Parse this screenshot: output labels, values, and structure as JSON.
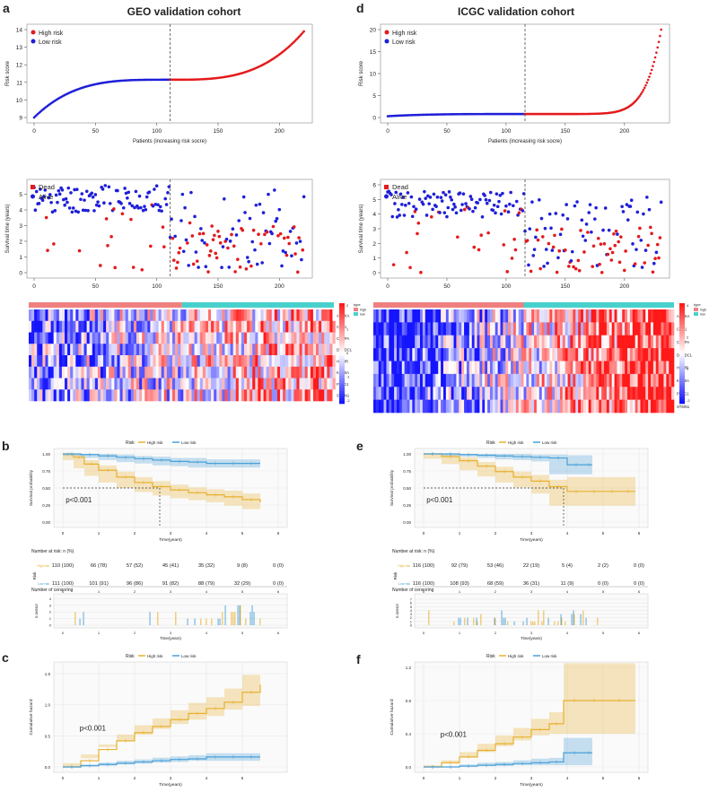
{
  "panels": {
    "a": {
      "letter": "a",
      "title": "GEO validation cohort",
      "score": {
        "ylabel": "Risk score",
        "xlabel": "Patients (increasing risk socre)",
        "yticks": [
          "9",
          "10",
          "11",
          "12",
          "13",
          "14"
        ],
        "xticks": [
          "0",
          "50",
          "100",
          "150",
          "200"
        ],
        "legend": [
          "High risk",
          "Low risk"
        ]
      },
      "surv": {
        "ylabel": "Survival time (years)",
        "yticks": [
          "0",
          "1",
          "2",
          "3",
          "4",
          "5"
        ],
        "xticks": [
          "0",
          "50",
          "100",
          "150",
          "200"
        ],
        "legend": [
          "Dead",
          "Alive"
        ]
      },
      "heat": {
        "genes": [
          "AURKA",
          "CDK1",
          "CENPA",
          "DEPDC1",
          "HMMR",
          "KIF20A",
          "PTTG1",
          "STMN1"
        ],
        "type_legend": [
          "type",
          "high",
          "low"
        ],
        "scale": [
          "2",
          "1",
          "0",
          "-1",
          "-2"
        ]
      }
    },
    "d": {
      "letter": "d",
      "title": "ICGC validation cohort",
      "score": {
        "ylabel": "Risk score",
        "xlabel": "Patients (increasing risk socre)",
        "yticks": [
          "0",
          "5",
          "10",
          "15",
          "20"
        ],
        "xticks": [
          "0",
          "50",
          "100",
          "150",
          "200"
        ],
        "legend": [
          "High risk",
          "Low risk"
        ]
      },
      "surv": {
        "ylabel": "Survival time (years)",
        "yticks": [
          "0",
          "1",
          "2",
          "3",
          "4",
          "5",
          "6"
        ],
        "xticks": [
          "0",
          "50",
          "100",
          "150",
          "200"
        ],
        "legend": [
          "Dead",
          "Alive"
        ]
      },
      "heat": {
        "genes": [
          "AURKA",
          "CDK1",
          "CENPA",
          "DEPDC1",
          "HMMR",
          "KIF20A",
          "PTTG1",
          "STMN1"
        ],
        "type_legend": [
          "type",
          "high",
          "low"
        ],
        "scale": [
          "4",
          "2",
          "0",
          "-2"
        ]
      }
    },
    "b": {
      "letter": "b",
      "legend_title": "Risk",
      "legend": [
        "High risk",
        "Low risk"
      ],
      "ylabel": "Survival probability",
      "xlabel": "Time(years)",
      "yticks": [
        "0.00",
        "0.25",
        "0.50",
        "0.75",
        "1.00"
      ],
      "xticks": [
        "0",
        "1",
        "2",
        "3",
        "4",
        "5",
        "6"
      ],
      "pval": "p<0.001",
      "risk_title": "Number at risk: n (%)",
      "risk_ylabel": "Risk",
      "risk_rows": [
        "High risk",
        "Low risk"
      ],
      "risk_high": [
        "110 (100)",
        "66 (78)",
        "57 (52)",
        "45 (41)",
        "35 (32)",
        "9 (8)",
        "0 (0)"
      ],
      "risk_low": [
        "111 (100)",
        "101 (91)",
        "96 (86)",
        "91 (82)",
        "88 (79)",
        "32 (29)",
        "0 (0)"
      ],
      "cens_title": "Number of censoring",
      "cens_ylabel": "n.censor",
      "cens_yticks": [
        "0",
        "1",
        "2",
        "3",
        "4"
      ]
    },
    "e": {
      "letter": "e",
      "legend_title": "Risk",
      "legend": [
        "High risk",
        "Low risk"
      ],
      "ylabel": "Survival probability",
      "xlabel": "Time(years)",
      "yticks": [
        "0.00",
        "0.25",
        "0.50",
        "0.75",
        "1.00"
      ],
      "xticks": [
        "0",
        "1",
        "2",
        "3",
        "4",
        "5",
        "6"
      ],
      "pval": "p<0.001",
      "risk_title": "Number at risk: n (%)",
      "risk_ylabel": "Risk",
      "risk_rows": [
        "High risk",
        "Low risk"
      ],
      "risk_high": [
        "116 (100)",
        "92 (79)",
        "53 (46)",
        "22 (19)",
        "5 (4)",
        "2 (2)",
        "0 (0)"
      ],
      "risk_low": [
        "116 (100)",
        "108 (93)",
        "68 (59)",
        "36 (31)",
        "11 (9)",
        "0 (0)",
        "0 (0)"
      ],
      "cens_title": "Number of censoring",
      "cens_ylabel": "n.censor",
      "cens_yticks": [
        "0",
        "1",
        "2",
        "3",
        "4",
        "5",
        "6",
        "7"
      ]
    },
    "c": {
      "letter": "c",
      "legend_title": "Risk",
      "legend": [
        "High risk",
        "Low risk"
      ],
      "ylabel": "Cumulative hazard",
      "xlabel": "Time(years)",
      "yticks": [
        "0.0",
        "0.5",
        "1.0",
        "1.5"
      ],
      "xticks": [
        "0",
        "1",
        "2",
        "3",
        "4",
        "5"
      ],
      "pval": "p<0.001"
    },
    "f": {
      "letter": "f",
      "legend_title": "Risk",
      "legend": [
        "High risk",
        "Low risk"
      ],
      "ylabel": "Cumulative hazard",
      "xlabel": "Time(years)",
      "yticks": [
        "0.0",
        "0.4",
        "0.8",
        "1.2"
      ],
      "xticks": [
        "0",
        "1",
        "2",
        "3",
        "4",
        "5",
        "6"
      ],
      "pval": "p<0.001"
    }
  },
  "colors": {
    "high": "#e41a1c",
    "low": "#1f1fd8",
    "km_high": "#e8b030",
    "km_low": "#4aa0d8",
    "heat_high": "#f08080",
    "heat_low": "#48d1cc",
    "hm_pos": "#e31a1c",
    "hm_neg": "#1010d0"
  },
  "chart_data": [
    {
      "type": "scatter",
      "panel": "a-risk-score",
      "title": "GEO validation cohort",
      "xlabel": "Patients (increasing risk socre)",
      "ylabel": "Risk score",
      "xlim": [
        0,
        221
      ],
      "ylim": [
        9,
        14
      ],
      "cutoff": 111,
      "series": [
        {
          "name": "Low risk",
          "n": 111,
          "y_start": 9.0,
          "y_end": 11.15
        },
        {
          "name": "High risk",
          "n": 110,
          "y_start": 11.15,
          "y_end": 13.9
        }
      ]
    },
    {
      "type": "scatter",
      "panel": "d-risk-score",
      "title": "ICGC validation cohort",
      "xlabel": "Patients (increasing risk socre)",
      "ylabel": "Risk score",
      "xlim": [
        0,
        232
      ],
      "ylim": [
        0,
        20
      ],
      "cutoff": 116,
      "series": [
        {
          "name": "Low risk",
          "n": 116,
          "y_start": 0.3,
          "y_end": 0.8
        },
        {
          "name": "High risk",
          "n": 116,
          "y_start": 0.8,
          "y_end": 20.0
        }
      ]
    },
    {
      "type": "scatter",
      "panel": "a-survival-time",
      "ylabel": "Survival time (years)",
      "xlim": [
        0,
        221
      ],
      "ylim": [
        0,
        5.6
      ],
      "series": [
        {
          "name": "Dead"
        },
        {
          "name": "Alive"
        }
      ]
    },
    {
      "type": "scatter",
      "panel": "d-survival-time",
      "ylabel": "Survival time (years)",
      "xlim": [
        0,
        232
      ],
      "ylim": [
        0,
        6.0
      ],
      "series": [
        {
          "name": "Dead"
        },
        {
          "name": "Alive"
        }
      ]
    },
    {
      "type": "line",
      "panel": "b",
      "xlabel": "Time(years)",
      "ylabel": "Survival probability",
      "xlim": [
        0,
        6
      ],
      "ylim": [
        0,
        1
      ],
      "series": [
        {
          "name": "High risk",
          "x": [
            0,
            0.3,
            0.6,
            1,
            1.5,
            2,
            2.5,
            3,
            3.5,
            4,
            4.5,
            5,
            5.5
          ],
          "y": [
            1,
            0.95,
            0.85,
            0.76,
            0.66,
            0.58,
            0.52,
            0.47,
            0.43,
            0.4,
            0.37,
            0.33,
            0.29
          ],
          "lower": [
            1,
            0.91,
            0.79,
            0.68,
            0.58,
            0.5,
            0.44,
            0.39,
            0.35,
            0.32,
            0.29,
            0.24,
            0.19
          ],
          "upper": [
            1,
            0.99,
            0.91,
            0.83,
            0.74,
            0.66,
            0.6,
            0.55,
            0.51,
            0.48,
            0.46,
            0.42,
            0.4
          ]
        },
        {
          "name": "Low risk",
          "x": [
            0,
            0.5,
            1,
            1.5,
            2,
            2.5,
            3,
            3.5,
            4,
            4.5,
            5,
            5.5
          ],
          "y": [
            1,
            0.99,
            0.97,
            0.95,
            0.93,
            0.91,
            0.89,
            0.88,
            0.86,
            0.86,
            0.86,
            0.86
          ],
          "lower": [
            1,
            0.97,
            0.94,
            0.91,
            0.88,
            0.86,
            0.83,
            0.82,
            0.8,
            0.8,
            0.8,
            0.8
          ],
          "upper": [
            1,
            1,
            1,
            0.99,
            0.97,
            0.96,
            0.94,
            0.94,
            0.92,
            0.92,
            0.92,
            0.92
          ]
        }
      ],
      "median_high": 2.7
    },
    {
      "type": "line",
      "panel": "e",
      "xlabel": "Time(years)",
      "ylabel": "Survival probability",
      "xlim": [
        0,
        6
      ],
      "ylim": [
        0,
        1
      ],
      "series": [
        {
          "name": "High risk",
          "x": [
            0,
            0.5,
            1,
            1.5,
            2,
            2.5,
            3,
            3.5,
            4,
            4.5,
            5,
            5.5,
            5.9
          ],
          "y": [
            1,
            0.96,
            0.9,
            0.82,
            0.74,
            0.66,
            0.6,
            0.52,
            0.45,
            0.45,
            0.45,
            0.45,
            0.45
          ],
          "lower": [
            1,
            0.93,
            0.85,
            0.76,
            0.67,
            0.58,
            0.51,
            0.42,
            0.24,
            0.24,
            0.24,
            0.24,
            0.24
          ],
          "upper": [
            1,
            0.99,
            0.95,
            0.88,
            0.81,
            0.74,
            0.69,
            0.62,
            0.66,
            0.66,
            0.66,
            0.66,
            0.66
          ]
        },
        {
          "name": "Low risk",
          "x": [
            0,
            0.5,
            1,
            1.5,
            2,
            2.5,
            3,
            3.5,
            4,
            4.5,
            4.7
          ],
          "y": [
            1,
            1,
            0.99,
            0.98,
            0.97,
            0.96,
            0.95,
            0.94,
            0.84,
            0.84,
            0.84
          ],
          "lower": [
            1,
            1,
            0.97,
            0.96,
            0.94,
            0.92,
            0.91,
            0.89,
            0.7,
            0.7,
            0.7
          ],
          "upper": [
            1,
            1,
            1,
            1,
            1,
            1,
            0.99,
            0.99,
            0.98,
            0.98,
            0.98
          ]
        }
      ],
      "median_high": 3.9
    },
    {
      "type": "bar",
      "panel": "b-censoring",
      "ylabel": "n.censor",
      "xlabel": "Time(years)",
      "ylim": [
        0,
        4
      ]
    },
    {
      "type": "bar",
      "panel": "e-censoring",
      "ylabel": "n.censor",
      "xlabel": "Time(years)",
      "ylim": [
        0,
        7
      ]
    },
    {
      "type": "line",
      "panel": "c",
      "xlabel": "Time(years)",
      "ylabel": "Cumulative hazard",
      "xlim": [
        0,
        5.6
      ],
      "ylim": [
        0,
        1.6
      ],
      "series": [
        {
          "name": "High risk",
          "x": [
            0,
            0.5,
            1,
            1.5,
            2,
            2.5,
            3,
            3.5,
            4,
            4.5,
            5,
            5.5
          ],
          "y": [
            0,
            0.1,
            0.28,
            0.42,
            0.55,
            0.65,
            0.76,
            0.86,
            0.94,
            1.04,
            1.2,
            1.32
          ],
          "lower": [
            0,
            0.06,
            0.2,
            0.32,
            0.43,
            0.52,
            0.61,
            0.69,
            0.76,
            0.82,
            0.92,
            0.98
          ],
          "upper": [
            0,
            0.14,
            0.36,
            0.52,
            0.67,
            0.78,
            0.91,
            1.03,
            1.12,
            1.26,
            1.48,
            1.66
          ]
        },
        {
          "name": "Low risk",
          "x": [
            0,
            0.5,
            1,
            1.5,
            2,
            2.5,
            3,
            3.5,
            4,
            4.5,
            5,
            5.5
          ],
          "y": [
            0,
            0.02,
            0.04,
            0.06,
            0.08,
            0.1,
            0.12,
            0.13,
            0.16,
            0.16,
            0.16,
            0.16
          ],
          "lower": [
            0,
            0,
            0.01,
            0.02,
            0.04,
            0.05,
            0.07,
            0.08,
            0.1,
            0.1,
            0.1,
            0.1
          ],
          "upper": [
            0,
            0.04,
            0.07,
            0.1,
            0.12,
            0.15,
            0.17,
            0.19,
            0.22,
            0.22,
            0.22,
            0.22
          ]
        }
      ]
    },
    {
      "type": "line",
      "panel": "f",
      "xlabel": "Time(years)",
      "ylabel": "Cumulative hazard",
      "xlim": [
        0,
        6
      ],
      "ylim": [
        0,
        1.2
      ],
      "series": [
        {
          "name": "High risk",
          "x": [
            0,
            0.5,
            1,
            1.5,
            2,
            2.5,
            3,
            3.5,
            3.9,
            4.5,
            5,
            5.9
          ],
          "y": [
            0,
            0.05,
            0.12,
            0.2,
            0.28,
            0.36,
            0.45,
            0.52,
            0.8,
            0.8,
            0.8,
            0.8
          ],
          "lower": [
            0,
            0.02,
            0.06,
            0.12,
            0.18,
            0.25,
            0.32,
            0.38,
            0.4,
            0.4,
            0.4,
            0.4
          ],
          "upper": [
            0,
            0.08,
            0.18,
            0.28,
            0.38,
            0.47,
            0.58,
            0.66,
            1.25,
            1.25,
            1.25,
            1.25
          ]
        },
        {
          "name": "Low risk",
          "x": [
            0,
            0.5,
            1,
            1.5,
            2,
            2.5,
            3,
            3.5,
            3.9,
            4.5,
            4.7
          ],
          "y": [
            0,
            0,
            0.01,
            0.02,
            0.03,
            0.04,
            0.05,
            0.06,
            0.17,
            0.17,
            0.17
          ],
          "lower": [
            0,
            0,
            0,
            0,
            0.01,
            0.01,
            0.02,
            0.02,
            0.02,
            0.02,
            0.02
          ],
          "upper": [
            0,
            0,
            0.03,
            0.05,
            0.06,
            0.08,
            0.1,
            0.11,
            0.35,
            0.35,
            0.35
          ]
        }
      ]
    }
  ]
}
